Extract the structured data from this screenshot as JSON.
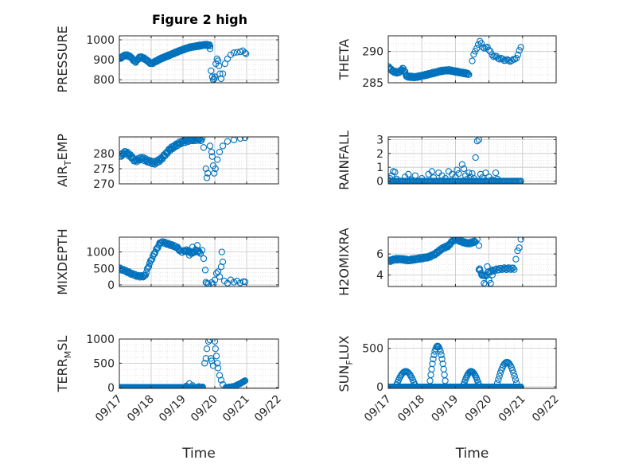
{
  "figure_title": "Figure 2 high",
  "colors": {
    "marker": "#0072BD",
    "axis": "#262626",
    "grid": "#c8c8c8",
    "minor_grid": "#dedede"
  },
  "chart_data": [
    {
      "type": "scatter",
      "name": "pressure",
      "ylabel": "PRESSURE",
      "ylabel_base": "PRESSURE",
      "ylabel_sub": "",
      "ylabel_tail": "",
      "ylabel_sub_dir": "",
      "ylim": [
        785,
        1020
      ],
      "yticks": [
        800,
        900,
        1000
      ],
      "yticklabels": [
        "800",
        "900",
        "1000"
      ],
      "xlim": [
        17,
        22
      ],
      "show_xticklabels": false,
      "xlabel": "",
      "anchors": [
        [
          17.0,
          905
        ],
        [
          17.2,
          925
        ],
        [
          17.35,
          915
        ],
        [
          17.5,
          888
        ],
        [
          17.65,
          915
        ],
        [
          17.8,
          905
        ],
        [
          18.0,
          880
        ],
        [
          18.3,
          905
        ],
        [
          18.6,
          925
        ],
        [
          18.9,
          945
        ],
        [
          19.2,
          962
        ],
        [
          19.5,
          970
        ],
        [
          19.7,
          975
        ],
        [
          19.85,
          972
        ]
      ],
      "anchors2": [],
      "n": 140,
      "amp": 4,
      "jitter": 0,
      "points": [
        [
          19.85,
          955
        ],
        [
          19.88,
          845
        ],
        [
          19.92,
          815
        ],
        [
          19.95,
          800
        ],
        [
          19.98,
          805
        ],
        [
          20.0,
          815
        ],
        [
          20.03,
          880
        ],
        [
          20.07,
          905
        ],
        [
          20.1,
          895
        ],
        [
          20.13,
          870
        ],
        [
          20.16,
          830
        ],
        [
          20.2,
          805
        ],
        [
          20.25,
          830
        ],
        [
          20.32,
          880
        ],
        [
          20.4,
          905
        ],
        [
          20.5,
          925
        ],
        [
          20.6,
          935
        ],
        [
          20.7,
          938
        ],
        [
          20.8,
          940
        ],
        [
          20.88,
          945
        ],
        [
          20.95,
          935
        ],
        [
          20.98,
          930
        ]
      ]
    },
    {
      "type": "scatter",
      "name": "theta",
      "ylabel": "THETA",
      "ylabel_base": "THETA",
      "ylabel_sub": "",
      "ylabel_tail": "",
      "ylabel_sub_dir": "",
      "ylim": [
        285,
        292.5
      ],
      "yticks": [
        285,
        290
      ],
      "yticklabels": [
        "285",
        "290"
      ],
      "xlim": [
        17,
        22
      ],
      "show_xticklabels": false,
      "xlabel": "",
      "anchors": [
        [
          17.0,
          287.5
        ],
        [
          17.15,
          286.8
        ],
        [
          17.3,
          286.6
        ],
        [
          17.45,
          287.3
        ],
        [
          17.55,
          286.0
        ],
        [
          17.8,
          285.9
        ],
        [
          18.0,
          286.1
        ],
        [
          18.3,
          286.5
        ],
        [
          18.6,
          286.9
        ],
        [
          18.8,
          287.0
        ],
        [
          19.0,
          286.8
        ],
        [
          19.2,
          286.6
        ],
        [
          19.4,
          286.4
        ]
      ],
      "anchors2": [
        [
          19.5,
          288.5
        ],
        [
          19.55,
          289.5
        ],
        [
          19.62,
          290.5
        ],
        [
          19.7,
          291.2
        ],
        [
          19.75,
          291.8
        ],
        [
          19.8,
          290.9
        ],
        [
          19.87,
          290.3
        ],
        [
          19.95,
          290.9
        ],
        [
          20.0,
          290.2
        ],
        [
          20.1,
          289.4
        ],
        [
          20.3,
          288.9
        ],
        [
          20.5,
          288.6
        ],
        [
          20.7,
          288.5
        ],
        [
          20.85,
          289.2
        ],
        [
          20.95,
          290.8
        ]
      ],
      "n": 130,
      "amp": 0.15,
      "jitter": 0,
      "points": []
    },
    {
      "type": "scatter",
      "name": "air_temp",
      "ylabel": "AIR_TEMP",
      "ylabel_base": "AIR",
      "ylabel_sub": "T",
      "ylabel_tail": "EMP",
      "ylabel_sub_dir": "down",
      "ylim": [
        270,
        285.5
      ],
      "yticks": [
        270,
        275,
        280
      ],
      "yticklabels": [
        "270",
        "275",
        "280"
      ],
      "xlim": [
        17,
        22
      ],
      "show_xticklabels": false,
      "xlabel": "",
      "anchors": [
        [
          17.0,
          279.0
        ],
        [
          17.2,
          280.5
        ],
        [
          17.35,
          279.2
        ],
        [
          17.5,
          277.5
        ],
        [
          17.7,
          278.5
        ],
        [
          17.9,
          277.5
        ],
        [
          18.1,
          276.8
        ],
        [
          18.3,
          278.0
        ],
        [
          18.6,
          281.5
        ],
        [
          18.9,
          283.5
        ],
        [
          19.2,
          284.5
        ],
        [
          19.5,
          284.8
        ],
        [
          19.6,
          284.5
        ]
      ],
      "anchors2": [],
      "n": 120,
      "amp": 0.5,
      "jitter": 0,
      "points": [
        [
          19.65,
          282.0
        ],
        [
          19.72,
          275.0
        ],
        [
          19.75,
          272.0
        ],
        [
          19.78,
          273.5
        ],
        [
          19.85,
          282.5
        ],
        [
          19.9,
          280.5
        ],
        [
          19.92,
          279.0
        ],
        [
          19.95,
          276.0
        ],
        [
          19.98,
          273.5
        ],
        [
          20.02,
          275.0
        ],
        [
          20.08,
          278.0
        ],
        [
          20.15,
          280.5
        ],
        [
          20.25,
          282.5
        ],
        [
          20.4,
          284.0
        ],
        [
          20.6,
          284.5
        ],
        [
          20.8,
          285.0
        ],
        [
          20.95,
          285.2
        ]
      ]
    },
    {
      "type": "scatter",
      "name": "rainfall",
      "ylabel": "RAINFALL",
      "ylabel_base": "RAINFALL",
      "ylabel_sub": "",
      "ylabel_tail": "",
      "ylabel_sub_dir": "",
      "ylim": [
        -0.2,
        3.2
      ],
      "yticks": [
        0,
        1,
        2,
        3
      ],
      "yticklabels": [
        "0",
        "1",
        "2",
        "3"
      ],
      "xlim": [
        17,
        22
      ],
      "show_xticklabels": false,
      "xlabel": "",
      "anchors": [
        [
          17.0,
          0.0
        ],
        [
          20.95,
          0.0
        ]
      ],
      "anchors2": [],
      "n": 120,
      "amp": 0,
      "jitter": 0,
      "points": [
        [
          17.0,
          0.1
        ],
        [
          17.05,
          0.2
        ],
        [
          17.1,
          0.4
        ],
        [
          17.15,
          0.7
        ],
        [
          17.2,
          0.65
        ],
        [
          17.25,
          0.15
        ],
        [
          17.5,
          0.3
        ],
        [
          17.6,
          0.5
        ],
        [
          17.7,
          0.1
        ],
        [
          17.8,
          0.4
        ],
        [
          18.0,
          0.2
        ],
        [
          18.2,
          0.5
        ],
        [
          18.3,
          0.7
        ],
        [
          18.35,
          0.25
        ],
        [
          18.5,
          0.6
        ],
        [
          18.6,
          0.4
        ],
        [
          18.7,
          0.2
        ],
        [
          18.8,
          0.7
        ],
        [
          18.9,
          0.5
        ],
        [
          19.0,
          0.3
        ],
        [
          19.05,
          0.8
        ],
        [
          19.1,
          0.55
        ],
        [
          19.2,
          1.2
        ],
        [
          19.25,
          0.9
        ],
        [
          19.3,
          0.4
        ],
        [
          19.35,
          0.15
        ],
        [
          19.4,
          0.6
        ],
        [
          19.45,
          0.3
        ],
        [
          19.5,
          0.55
        ],
        [
          19.55,
          0.2
        ],
        [
          19.6,
          1.7
        ],
        [
          19.65,
          2.9
        ],
        [
          19.7,
          3.0
        ],
        [
          19.75,
          0.5
        ],
        [
          19.8,
          0.25
        ],
        [
          19.9,
          0.6
        ],
        [
          20.0,
          0.3
        ],
        [
          20.1,
          0.1
        ],
        [
          20.2,
          0.6
        ],
        [
          20.25,
          0.15
        ]
      ]
    },
    {
      "type": "scatter",
      "name": "mixdepth",
      "ylabel": "MIXDEPTH",
      "ylabel_base": "MIXDEPTH",
      "ylabel_sub": "",
      "ylabel_tail": "",
      "ylabel_sub_dir": "",
      "ylim": [
        -50,
        1450
      ],
      "yticks": [
        0,
        500,
        1000
      ],
      "yticklabels": [
        "0",
        "500",
        "1000"
      ],
      "xlim": [
        17,
        22
      ],
      "show_xticklabels": false,
      "xlabel": "",
      "anchors": [
        [
          17.0,
          500
        ],
        [
          17.2,
          420
        ],
        [
          17.4,
          330
        ],
        [
          17.6,
          260
        ],
        [
          17.8,
          260
        ],
        [
          17.95,
          650
        ],
        [
          18.15,
          1050
        ],
        [
          18.3,
          1310
        ],
        [
          18.45,
          1270
        ],
        [
          18.6,
          1220
        ],
        [
          18.8,
          1150
        ],
        [
          18.95,
          1000
        ],
        [
          19.1,
          1050
        ],
        [
          19.3,
          960
        ],
        [
          19.4,
          1050
        ],
        [
          19.55,
          980
        ]
      ],
      "anchors2": [],
      "n": 100,
      "amp": 30,
      "jitter": 0,
      "points": [
        [
          19.2,
          900
        ],
        [
          19.3,
          1150
        ],
        [
          19.45,
          1200
        ],
        [
          19.6,
          1050
        ],
        [
          19.65,
          800
        ],
        [
          19.7,
          450
        ],
        [
          19.72,
          80
        ],
        [
          19.75,
          50
        ],
        [
          19.8,
          30
        ],
        [
          19.9,
          70
        ],
        [
          19.95,
          20
        ],
        [
          20.0,
          150
        ],
        [
          20.05,
          350
        ],
        [
          20.1,
          400
        ],
        [
          20.15,
          250
        ],
        [
          20.2,
          550
        ],
        [
          20.22,
          1000
        ],
        [
          20.25,
          700
        ],
        [
          20.3,
          120
        ],
        [
          20.4,
          50
        ],
        [
          20.5,
          150
        ],
        [
          20.6,
          80
        ],
        [
          20.7,
          120
        ],
        [
          20.8,
          60
        ],
        [
          20.9,
          100
        ],
        [
          20.95,
          90
        ]
      ]
    },
    {
      "type": "scatter",
      "name": "h2omixra",
      "ylabel": "H2OMIXRA",
      "ylabel_base": "H2OMIXRA",
      "ylabel_sub": "",
      "ylabel_tail": "",
      "ylabel_sub_dir": "",
      "ylim": [
        2.9,
        7.6
      ],
      "yticks": [
        4,
        6
      ],
      "yticklabels": [
        "4",
        "6"
      ],
      "xlim": [
        17,
        22
      ],
      "show_xticklabels": false,
      "xlabel": "",
      "anchors": [
        [
          17.0,
          5.3
        ],
        [
          17.2,
          5.5
        ],
        [
          17.4,
          5.5
        ],
        [
          17.6,
          5.4
        ],
        [
          17.8,
          5.5
        ],
        [
          18.0,
          5.6
        ],
        [
          18.2,
          5.7
        ],
        [
          18.4,
          6.0
        ],
        [
          18.6,
          6.5
        ],
        [
          18.8,
          6.8
        ],
        [
          18.95,
          7.4
        ],
        [
          19.1,
          7.3
        ],
        [
          19.25,
          7.1
        ],
        [
          19.4,
          7.0
        ],
        [
          19.6,
          7.2
        ]
      ],
      "anchors2": [
        [
          19.7,
          4.5
        ],
        [
          19.85,
          3.8
        ],
        [
          20.0,
          4.3
        ],
        [
          20.2,
          4.5
        ],
        [
          20.4,
          4.6
        ],
        [
          20.6,
          4.6
        ],
        [
          20.75,
          4.6
        ]
      ],
      "n": 130,
      "amp": 0.1,
      "jitter": 0,
      "points": [
        [
          19.65,
          7.4
        ],
        [
          19.7,
          6.8
        ],
        [
          19.72,
          4.6
        ],
        [
          19.78,
          4.0
        ],
        [
          19.85,
          3.2
        ],
        [
          19.9,
          3.1
        ],
        [
          19.95,
          4.8
        ],
        [
          20.0,
          3.5
        ],
        [
          20.05,
          3.2
        ],
        [
          20.1,
          4.0
        ],
        [
          20.8,
          5.5
        ],
        [
          20.85,
          6.3
        ],
        [
          20.9,
          6.6
        ],
        [
          20.95,
          7.4
        ]
      ]
    },
    {
      "type": "scatter",
      "name": "terr_msl",
      "ylabel": "TERR_MSL",
      "ylabel_base": "TERR",
      "ylabel_sub": "M",
      "ylabel_tail": "SL",
      "ylabel_sub_dir": "down",
      "ylim": [
        -20,
        1000
      ],
      "yticks": [
        0,
        500,
        1000
      ],
      "yticklabels": [
        "0",
        "500",
        "1000"
      ],
      "xlim": [
        17,
        22
      ],
      "show_xticklabels": true,
      "xlabel": "Time",
      "anchors": [
        [
          17.0,
          0
        ],
        [
          19.6,
          0
        ]
      ],
      "anchors2": [
        [
          20.35,
          0
        ],
        [
          20.6,
          20
        ],
        [
          20.8,
          80
        ],
        [
          20.95,
          140
        ]
      ],
      "n": 110,
      "amp": 0,
      "jitter": 0,
      "points": [
        [
          19.1,
          30
        ],
        [
          19.2,
          80
        ],
        [
          19.3,
          40
        ],
        [
          19.5,
          20
        ],
        [
          19.62,
          10
        ],
        [
          19.68,
          500
        ],
        [
          19.72,
          600
        ],
        [
          19.75,
          800
        ],
        [
          19.8,
          950
        ],
        [
          19.85,
          980
        ],
        [
          19.88,
          600
        ],
        [
          19.9,
          550
        ],
        [
          19.95,
          450
        ],
        [
          20.0,
          950
        ],
        [
          20.02,
          800
        ],
        [
          20.05,
          650
        ],
        [
          20.08,
          500
        ],
        [
          20.1,
          400
        ],
        [
          20.15,
          250
        ],
        [
          20.2,
          150
        ],
        [
          20.25,
          60
        ]
      ]
    },
    {
      "type": "scatter",
      "name": "sun_flux",
      "ylabel": "SUN_FLUX",
      "ylabel_base": "SUN",
      "ylabel_sub": "F",
      "ylabel_tail": "LUX",
      "ylabel_sub_dir": "down",
      "ylim": [
        -20,
        620
      ],
      "yticks": [
        0,
        500
      ],
      "yticklabels": [
        "0",
        "500"
      ],
      "xlim": [
        17,
        22
      ],
      "show_xticklabels": true,
      "xlabel": "Time",
      "anchors": [
        [
          17.0,
          0
        ],
        [
          20.95,
          0
        ]
      ],
      "anchors2": [],
      "n": 160,
      "amp": 0,
      "jitter": 0,
      "points": [],
      "bumps": [
        [
          17.22,
          17.82,
          200
        ],
        [
          18.22,
          18.72,
          530
        ],
        [
          19.22,
          19.72,
          200
        ],
        [
          20.22,
          20.85,
          320
        ]
      ],
      "bump_n": 22
    }
  ],
  "xticks": [
    17,
    18,
    19,
    20,
    21,
    22
  ],
  "xticklabels": [
    "09/17",
    "09/18",
    "09/19",
    "09/20",
    "09/21",
    "09/22"
  ]
}
